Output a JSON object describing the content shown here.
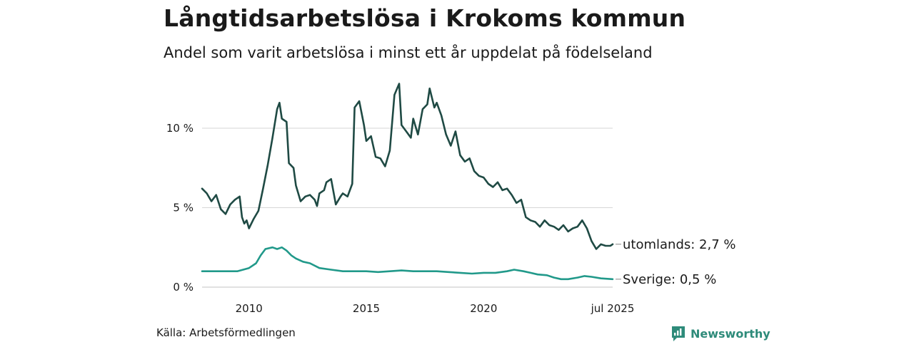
{
  "title": "Långtidsarbetslösa i Krokoms kommun",
  "subtitle": "Andel som varit arbetslösa i minst ett år uppdelat på födelseland",
  "source": "Källa: Arbetsförmedlingen",
  "brand": {
    "name": "Newsworthy",
    "icon": "newsworthy-logo-icon",
    "color": "#2e8b7a"
  },
  "chart_data": {
    "type": "line",
    "x_range": [
      "2008-01",
      "2025-07"
    ],
    "ylim": [
      0,
      13
    ],
    "yticks": [
      {
        "value": 0,
        "label": "0 %"
      },
      {
        "value": 5,
        "label": "5 %"
      },
      {
        "value": 10,
        "label": "10 %"
      }
    ],
    "xticks": [
      {
        "value": 2010,
        "label": "2010"
      },
      {
        "value": 2015,
        "label": "2015"
      },
      {
        "value": 2020,
        "label": "2020"
      },
      {
        "value": 2025.5,
        "label": "jul 2025"
      }
    ],
    "grid": true,
    "series": [
      {
        "name": "utomlands",
        "end_label": "utomlands: 2,7 %",
        "color": "#1f4a44",
        "points": [
          [
            2008.0,
            6.2
          ],
          [
            2008.2,
            5.9
          ],
          [
            2008.4,
            5.4
          ],
          [
            2008.6,
            5.8
          ],
          [
            2008.8,
            4.9
          ],
          [
            2009.0,
            4.6
          ],
          [
            2009.2,
            5.2
          ],
          [
            2009.4,
            5.5
          ],
          [
            2009.6,
            5.7
          ],
          [
            2009.7,
            4.4
          ],
          [
            2009.8,
            4.0
          ],
          [
            2009.9,
            4.2
          ],
          [
            2010.0,
            3.7
          ],
          [
            2010.2,
            4.3
          ],
          [
            2010.4,
            4.8
          ],
          [
            2010.6,
            6.2
          ],
          [
            2010.8,
            7.7
          ],
          [
            2011.0,
            9.4
          ],
          [
            2011.2,
            11.2
          ],
          [
            2011.3,
            11.6
          ],
          [
            2011.4,
            10.6
          ],
          [
            2011.6,
            10.4
          ],
          [
            2011.7,
            7.8
          ],
          [
            2011.9,
            7.5
          ],
          [
            2012.0,
            6.4
          ],
          [
            2012.2,
            5.4
          ],
          [
            2012.4,
            5.7
          ],
          [
            2012.6,
            5.8
          ],
          [
            2012.8,
            5.5
          ],
          [
            2012.9,
            5.1
          ],
          [
            2013.0,
            5.9
          ],
          [
            2013.2,
            6.1
          ],
          [
            2013.3,
            6.6
          ],
          [
            2013.5,
            6.8
          ],
          [
            2013.7,
            5.2
          ],
          [
            2013.9,
            5.7
          ],
          [
            2014.0,
            5.9
          ],
          [
            2014.2,
            5.7
          ],
          [
            2014.4,
            6.5
          ],
          [
            2014.5,
            11.3
          ],
          [
            2014.7,
            11.7
          ],
          [
            2014.9,
            10.2
          ],
          [
            2015.0,
            9.2
          ],
          [
            2015.2,
            9.5
          ],
          [
            2015.4,
            8.2
          ],
          [
            2015.6,
            8.1
          ],
          [
            2015.8,
            7.6
          ],
          [
            2016.0,
            8.6
          ],
          [
            2016.2,
            12.1
          ],
          [
            2016.4,
            12.8
          ],
          [
            2016.5,
            10.2
          ],
          [
            2016.7,
            9.8
          ],
          [
            2016.9,
            9.4
          ],
          [
            2017.0,
            10.6
          ],
          [
            2017.2,
            9.6
          ],
          [
            2017.4,
            11.2
          ],
          [
            2017.6,
            11.5
          ],
          [
            2017.7,
            12.5
          ],
          [
            2017.9,
            11.3
          ],
          [
            2018.0,
            11.6
          ],
          [
            2018.2,
            10.8
          ],
          [
            2018.4,
            9.6
          ],
          [
            2018.6,
            8.9
          ],
          [
            2018.8,
            9.8
          ],
          [
            2019.0,
            8.3
          ],
          [
            2019.2,
            7.9
          ],
          [
            2019.4,
            8.1
          ],
          [
            2019.6,
            7.3
          ],
          [
            2019.8,
            7.0
          ],
          [
            2020.0,
            6.9
          ],
          [
            2020.2,
            6.5
          ],
          [
            2020.4,
            6.3
          ],
          [
            2020.6,
            6.6
          ],
          [
            2020.8,
            6.1
          ],
          [
            2021.0,
            6.2
          ],
          [
            2021.2,
            5.8
          ],
          [
            2021.4,
            5.3
          ],
          [
            2021.6,
            5.5
          ],
          [
            2021.8,
            4.4
          ],
          [
            2022.0,
            4.2
          ],
          [
            2022.2,
            4.1
          ],
          [
            2022.4,
            3.8
          ],
          [
            2022.6,
            4.2
          ],
          [
            2022.8,
            3.9
          ],
          [
            2023.0,
            3.8
          ],
          [
            2023.2,
            3.6
          ],
          [
            2023.4,
            3.9
          ],
          [
            2023.6,
            3.5
          ],
          [
            2023.8,
            3.7
          ],
          [
            2024.0,
            3.8
          ],
          [
            2024.2,
            4.2
          ],
          [
            2024.4,
            3.7
          ],
          [
            2024.6,
            2.9
          ],
          [
            2024.8,
            2.4
          ],
          [
            2025.0,
            2.7
          ],
          [
            2025.2,
            2.6
          ],
          [
            2025.4,
            2.6
          ],
          [
            2025.5,
            2.7
          ]
        ]
      },
      {
        "name": "Sverige",
        "end_label": "Sverige: 0,5 %",
        "color": "#21998a",
        "points": [
          [
            2008.0,
            1.0
          ],
          [
            2008.5,
            1.0
          ],
          [
            2009.0,
            1.0
          ],
          [
            2009.5,
            1.0
          ],
          [
            2010.0,
            1.2
          ],
          [
            2010.3,
            1.5
          ],
          [
            2010.5,
            2.0
          ],
          [
            2010.7,
            2.4
          ],
          [
            2011.0,
            2.5
          ],
          [
            2011.2,
            2.4
          ],
          [
            2011.4,
            2.5
          ],
          [
            2011.6,
            2.3
          ],
          [
            2011.8,
            2.0
          ],
          [
            2012.0,
            1.8
          ],
          [
            2012.3,
            1.6
          ],
          [
            2012.6,
            1.5
          ],
          [
            2013.0,
            1.2
          ],
          [
            2013.5,
            1.1
          ],
          [
            2014.0,
            1.0
          ],
          [
            2014.5,
            1.0
          ],
          [
            2015.0,
            1.0
          ],
          [
            2015.5,
            0.95
          ],
          [
            2016.0,
            1.0
          ],
          [
            2016.5,
            1.05
          ],
          [
            2017.0,
            1.0
          ],
          [
            2017.5,
            1.0
          ],
          [
            2018.0,
            1.0
          ],
          [
            2018.5,
            0.95
          ],
          [
            2019.0,
            0.9
          ],
          [
            2019.5,
            0.85
          ],
          [
            2020.0,
            0.9
          ],
          [
            2020.5,
            0.9
          ],
          [
            2021.0,
            1.0
          ],
          [
            2021.3,
            1.1
          ],
          [
            2021.7,
            1.0
          ],
          [
            2022.0,
            0.9
          ],
          [
            2022.3,
            0.8
          ],
          [
            2022.7,
            0.75
          ],
          [
            2023.0,
            0.6
          ],
          [
            2023.3,
            0.5
          ],
          [
            2023.6,
            0.5
          ],
          [
            2024.0,
            0.6
          ],
          [
            2024.3,
            0.7
          ],
          [
            2024.6,
            0.65
          ],
          [
            2025.0,
            0.55
          ],
          [
            2025.5,
            0.5
          ]
        ]
      }
    ]
  }
}
